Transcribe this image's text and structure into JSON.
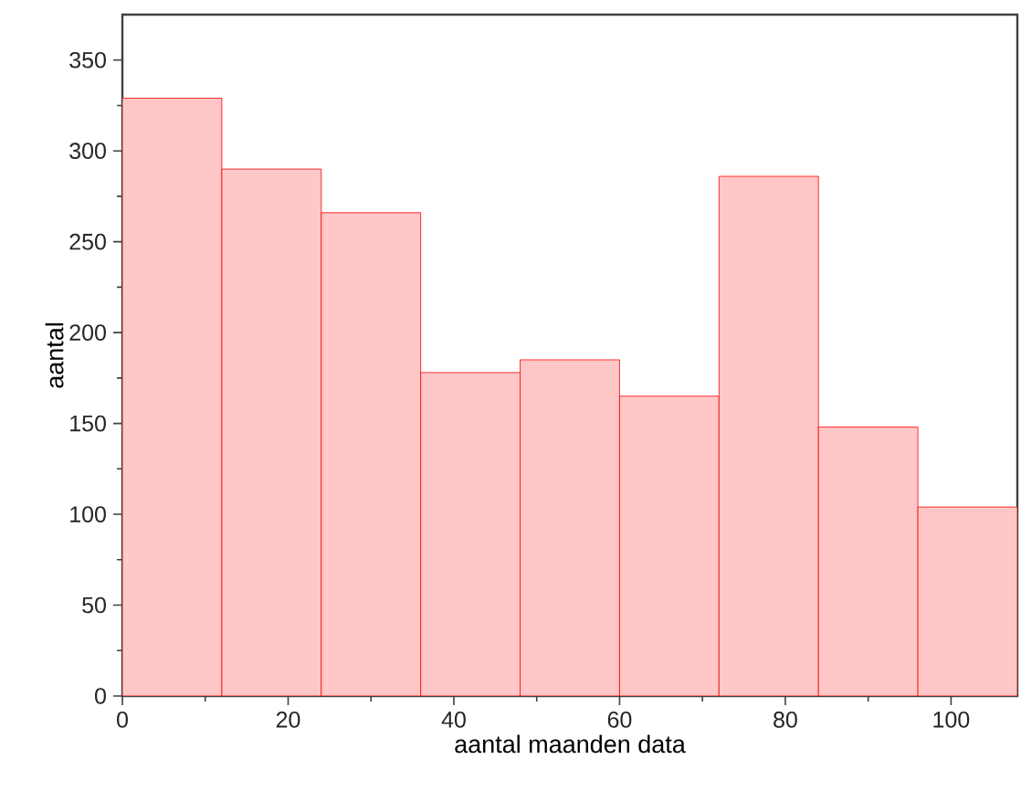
{
  "chart_data": {
    "type": "histogram",
    "xlabel": "aantal maanden data",
    "ylabel": "aantal",
    "bins": [
      0,
      12,
      24,
      36,
      48,
      60,
      72,
      84,
      96,
      108
    ],
    "values": [
      329,
      290,
      266,
      178,
      185,
      165,
      286,
      148,
      104
    ],
    "color": "#ff0000",
    "xlim": [
      0,
      108
    ],
    "ylim": [
      0,
      375
    ],
    "xticks": [
      0,
      20,
      40,
      60,
      80,
      100
    ],
    "yticks": [
      0,
      50,
      100,
      150,
      200,
      250,
      300,
      350
    ],
    "grid": false
  }
}
